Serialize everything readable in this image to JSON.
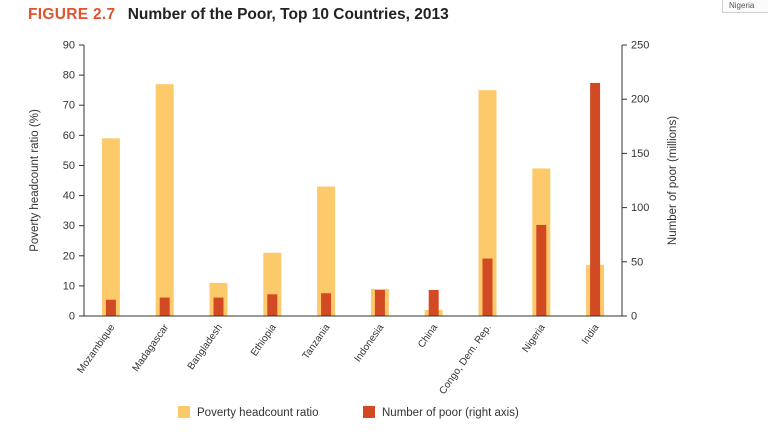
{
  "figure": {
    "label": "FIGURE 2.7",
    "title": "Number of the Poor, Top 10 Countries, 2013"
  },
  "tooltip_chip": {
    "text": "Nigeria"
  },
  "colors": {
    "ratio_bar": "#fdca6b",
    "poor_bar": "#d14a24",
    "figure_label": "#e0532f",
    "axis": "#333333"
  },
  "chart_data": {
    "type": "bar",
    "categories": [
      "Mozambique",
      "Madagascar",
      "Bangladesh",
      "Ethiopia",
      "Tanzania",
      "Indonesia",
      "China",
      "Congo, Dem. Rep.",
      "Nigeria",
      "India"
    ],
    "series": [
      {
        "name": "Poverty headcount ratio",
        "axis": "left",
        "values": [
          59,
          77,
          11,
          21,
          43,
          9,
          2,
          75,
          49,
          17
        ]
      },
      {
        "name": "Number of poor (right axis)",
        "axis": "right",
        "values": [
          15,
          17,
          17,
          20,
          21,
          24,
          24,
          53,
          84,
          215
        ]
      }
    ],
    "ylabel": "Poverty headcount ratio (%)",
    "y2label": "Number of poor (millions)",
    "ylim": [
      0,
      90
    ],
    "y2lim": [
      0,
      250
    ],
    "yticks": [
      0,
      10,
      20,
      30,
      40,
      50,
      60,
      70,
      80,
      90
    ],
    "y2ticks": [
      0,
      50,
      100,
      150,
      200,
      250
    ],
    "grid": false,
    "legend_position": "bottom"
  }
}
